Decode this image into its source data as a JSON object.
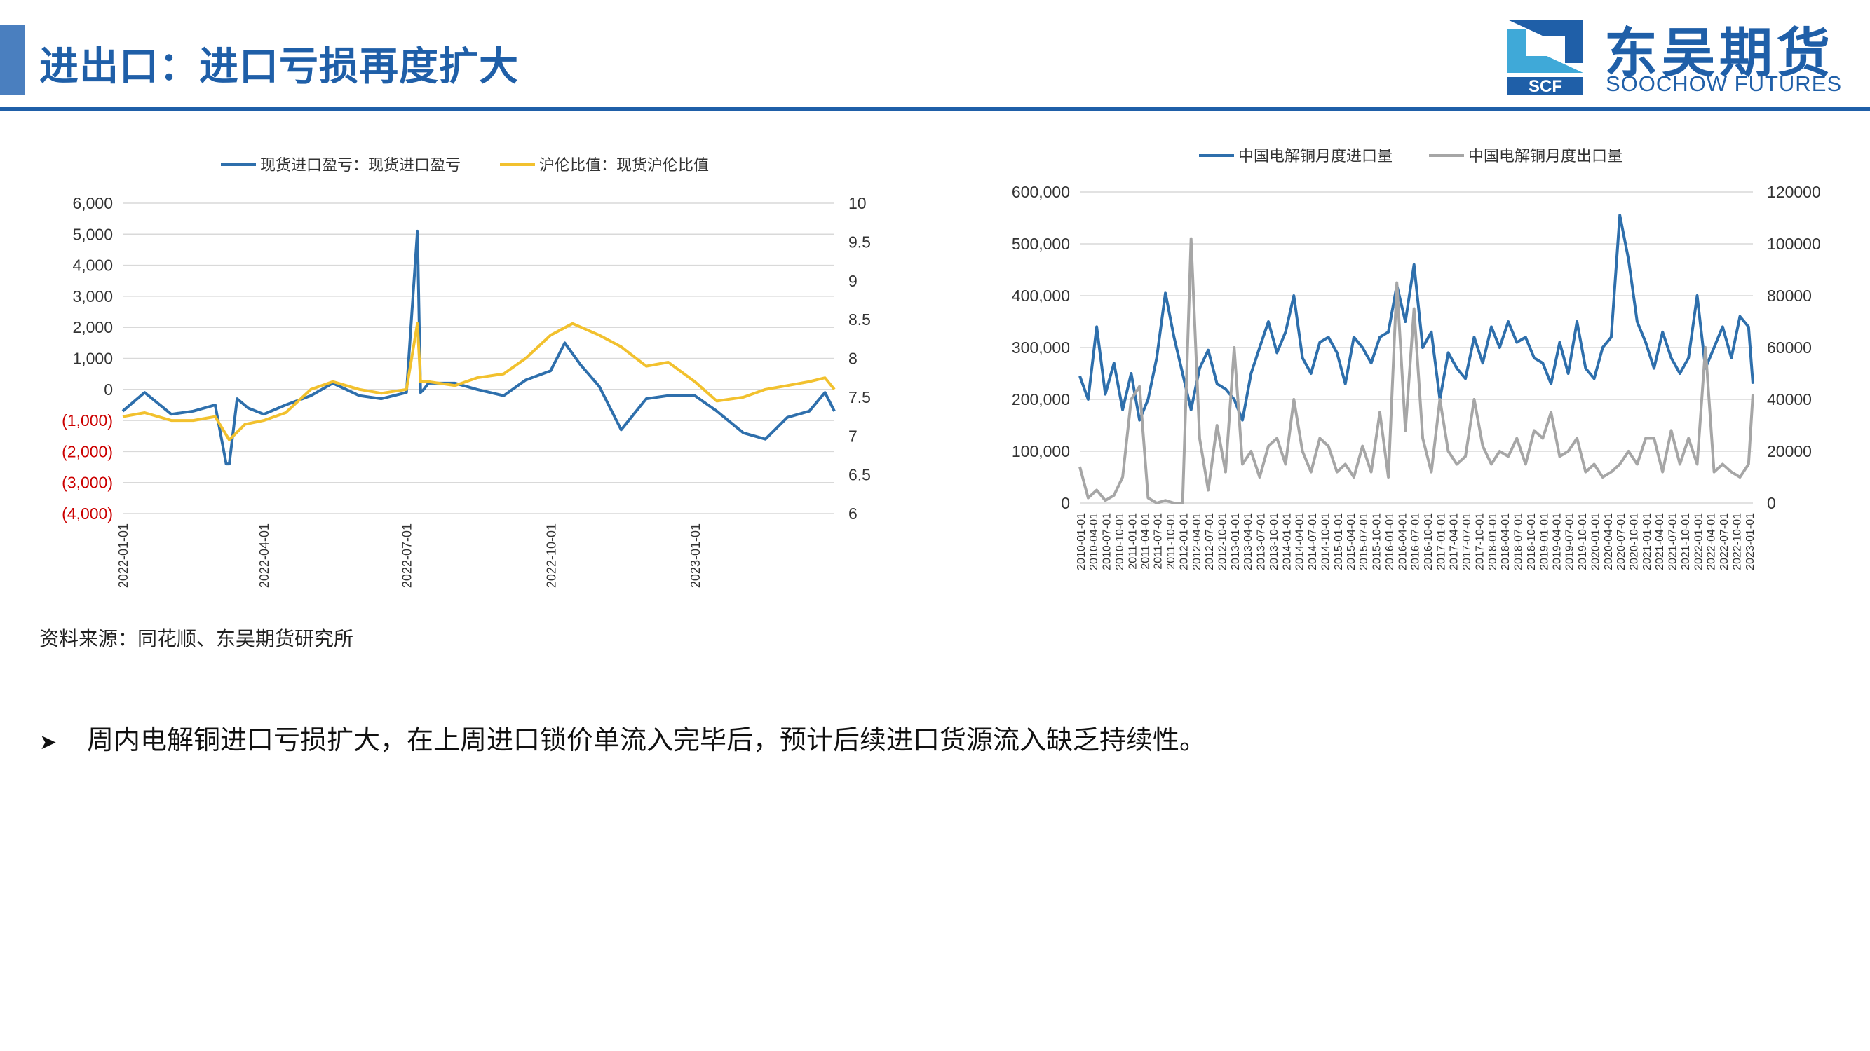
{
  "header": {
    "title": "进出口：进口亏损再度扩大"
  },
  "logo": {
    "cn": "东吴期货",
    "en": "SOOCHOW FUTURES",
    "mark": "SCF"
  },
  "colors": {
    "brand": "#1f5fa8",
    "blue": "#2e6fac",
    "yellow": "#f2c12e",
    "gray": "#a6a6a6",
    "negative": "#cc0000"
  },
  "source": "资料来源：同花顺、东吴期货研究所",
  "bullet": {
    "icon": "arrow-bullet-icon",
    "text": "周内电解铜进口亏损扩大，在上周进口锁价单流入完毕后，预计后续进口货源流入缺乏持续性。"
  },
  "chart_data": [
    {
      "type": "line",
      "legend": [
        "现货进口盈亏：现货进口盈亏",
        "沪伦比值：现货沪伦比值"
      ],
      "ytick_labels_left": [
        "6,000",
        "5,000",
        "4,000",
        "3,000",
        "2,000",
        "1,000",
        "0",
        "(1,000)",
        "(2,000)",
        "(3,000)",
        "(4,000)"
      ],
      "ytick_labels_right": [
        "10",
        "9.5",
        "9",
        "8.5",
        "8",
        "7.5",
        "7",
        "6.5",
        "6"
      ],
      "xtick_labels": [
        "2022-01-01",
        "2022-04-01",
        "2022-07-01",
        "2022-10-01",
        "2023-01-01"
      ],
      "ylim_left": [
        -4000,
        6000
      ],
      "ylim_right": [
        6,
        10
      ],
      "x_range": [
        "2022-01-01",
        "2023-03-31"
      ],
      "grid": true,
      "legend_position": "top",
      "series": [
        {
          "name": "现货进口盈亏：现货进口盈亏",
          "axis": "left",
          "x": [
            "2022-01-01",
            "2022-01-15",
            "2022-02-01",
            "2022-02-15",
            "2022-03-01",
            "2022-03-08",
            "2022-03-10",
            "2022-03-15",
            "2022-03-22",
            "2022-04-01",
            "2022-04-15",
            "2022-05-01",
            "2022-05-15",
            "2022-06-01",
            "2022-06-15",
            "2022-07-01",
            "2022-07-08",
            "2022-07-10",
            "2022-07-12",
            "2022-07-15",
            "2022-08-01",
            "2022-08-15",
            "2022-09-01",
            "2022-09-15",
            "2022-10-01",
            "2022-10-10",
            "2022-10-20",
            "2022-11-01",
            "2022-11-15",
            "2022-12-01",
            "2022-12-15",
            "2023-01-01",
            "2023-01-15",
            "2023-02-01",
            "2023-02-15",
            "2023-03-01",
            "2023-03-15",
            "2023-03-25",
            "2023-03-31"
          ],
          "values": [
            -700,
            -100,
            -800,
            -700,
            -500,
            -2400,
            -2400,
            -300,
            -600,
            -800,
            -500,
            -200,
            200,
            -200,
            -300,
            -100,
            5100,
            -100,
            0,
            200,
            200,
            0,
            -200,
            300,
            600,
            1500,
            800,
            100,
            -1300,
            -300,
            -200,
            -200,
            -700,
            -1400,
            -1600,
            -900,
            -700,
            -100,
            -700
          ]
        },
        {
          "name": "沪伦比值：现货沪伦比值",
          "axis": "right",
          "x": [
            "2022-01-01",
            "2022-01-15",
            "2022-02-01",
            "2022-02-15",
            "2022-03-01",
            "2022-03-10",
            "2022-03-20",
            "2022-04-01",
            "2022-04-15",
            "2022-05-01",
            "2022-05-15",
            "2022-06-01",
            "2022-06-15",
            "2022-07-01",
            "2022-07-08",
            "2022-07-10",
            "2022-07-15",
            "2022-08-01",
            "2022-08-15",
            "2022-09-01",
            "2022-09-15",
            "2022-10-01",
            "2022-10-15",
            "2022-11-01",
            "2022-11-15",
            "2022-12-01",
            "2022-12-15",
            "2023-01-01",
            "2023-01-15",
            "2023-02-01",
            "2023-02-15",
            "2023-03-01",
            "2023-03-15",
            "2023-03-25",
            "2023-03-31"
          ],
          "values": [
            7.25,
            7.3,
            7.2,
            7.2,
            7.25,
            6.95,
            7.15,
            7.2,
            7.3,
            7.6,
            7.7,
            7.6,
            7.55,
            7.6,
            8.45,
            7.7,
            7.7,
            7.65,
            7.75,
            7.8,
            8.0,
            8.3,
            8.45,
            8.3,
            8.15,
            7.9,
            7.95,
            7.7,
            7.45,
            7.5,
            7.6,
            7.65,
            7.7,
            7.75,
            7.6
          ]
        }
      ]
    },
    {
      "type": "line",
      "legend": [
        "中国电解铜月度进口量",
        "中国电解铜月度出口量"
      ],
      "ytick_labels_left": [
        "600,000",
        "500,000",
        "400,000",
        "300,000",
        "200,000",
        "100,000",
        "0"
      ],
      "ytick_labels_right": [
        "120000",
        "100000",
        "80000",
        "60000",
        "40000",
        "20000",
        "0"
      ],
      "xtick_labels": [
        "2010-01-01",
        "2010-04-01",
        "2010-07-01",
        "2010-10-01",
        "2011-01-01",
        "2011-04-01",
        "2011-07-01",
        "2011-10-01",
        "2012-01-01",
        "2012-04-01",
        "2012-07-01",
        "2012-10-01",
        "2013-01-01",
        "2013-04-01",
        "2013-07-01",
        "2013-10-01",
        "2014-01-01",
        "2014-04-01",
        "2014-07-01",
        "2014-10-01",
        "2015-01-01",
        "2015-04-01",
        "2015-07-01",
        "2015-10-01",
        "2016-01-01",
        "2016-04-01",
        "2016-07-01",
        "2016-10-01",
        "2017-01-01",
        "2017-04-01",
        "2017-07-01",
        "2017-10-01",
        "2018-01-01",
        "2018-04-01",
        "2018-07-01",
        "2018-10-01",
        "2019-01-01",
        "2019-04-01",
        "2019-07-01",
        "2019-10-01",
        "2020-01-01",
        "2020-04-01",
        "2020-07-01",
        "2020-10-01",
        "2021-01-01",
        "2021-04-01",
        "2021-07-01",
        "2021-10-01",
        "2022-01-01",
        "2022-04-01",
        "2022-07-01",
        "2022-10-01",
        "2023-01-01"
      ],
      "ylim_left": [
        0,
        600000
      ],
      "ylim_right": [
        0,
        120000
      ],
      "x_range": [
        "2010-01-01",
        "2023-02-01"
      ],
      "grid": true,
      "legend_position": "top",
      "series": [
        {
          "name": "中国电解铜月度进口量",
          "axis": "left",
          "x": [
            "2010-01",
            "2010-03",
            "2010-05",
            "2010-07",
            "2010-09",
            "2010-11",
            "2011-01",
            "2011-03",
            "2011-05",
            "2011-07",
            "2011-09",
            "2011-11",
            "2012-01",
            "2012-03",
            "2012-05",
            "2012-07",
            "2012-09",
            "2012-11",
            "2013-01",
            "2013-03",
            "2013-05",
            "2013-07",
            "2013-09",
            "2013-11",
            "2014-01",
            "2014-03",
            "2014-05",
            "2014-07",
            "2014-09",
            "2014-11",
            "2015-01",
            "2015-03",
            "2015-05",
            "2015-07",
            "2015-09",
            "2015-11",
            "2016-01",
            "2016-03",
            "2016-05",
            "2016-07",
            "2016-09",
            "2016-11",
            "2017-01",
            "2017-03",
            "2017-05",
            "2017-07",
            "2017-09",
            "2017-11",
            "2018-01",
            "2018-03",
            "2018-05",
            "2018-07",
            "2018-09",
            "2018-11",
            "2019-01",
            "2019-03",
            "2019-05",
            "2019-07",
            "2019-09",
            "2019-11",
            "2020-01",
            "2020-03",
            "2020-05",
            "2020-07",
            "2020-09",
            "2020-11",
            "2021-01",
            "2021-03",
            "2021-05",
            "2021-07",
            "2021-09",
            "2021-11",
            "2022-01",
            "2022-03",
            "2022-05",
            "2022-07",
            "2022-09",
            "2022-11",
            "2023-01",
            "2023-02"
          ],
          "values": [
            245000,
            200000,
            340000,
            210000,
            270000,
            180000,
            250000,
            160000,
            200000,
            280000,
            405000,
            320000,
            250000,
            180000,
            260000,
            295000,
            230000,
            220000,
            200000,
            160000,
            250000,
            300000,
            350000,
            290000,
            330000,
            400000,
            280000,
            250000,
            310000,
            320000,
            290000,
            230000,
            320000,
            300000,
            270000,
            320000,
            330000,
            420000,
            350000,
            460000,
            300000,
            330000,
            200000,
            290000,
            260000,
            240000,
            320000,
            270000,
            340000,
            300000,
            350000,
            310000,
            320000,
            280000,
            270000,
            230000,
            310000,
            250000,
            350000,
            260000,
            240000,
            300000,
            320000,
            555000,
            470000,
            350000,
            310000,
            260000,
            330000,
            280000,
            250000,
            280000,
            400000,
            260000,
            300000,
            340000,
            280000,
            360000,
            340000,
            230000
          ]
        },
        {
          "name": "中国电解铜月度出口量",
          "axis": "right",
          "x": [
            "2010-01",
            "2010-03",
            "2010-05",
            "2010-07",
            "2010-09",
            "2010-11",
            "2011-01",
            "2011-03",
            "2011-05",
            "2011-07",
            "2011-09",
            "2011-11",
            "2012-01",
            "2012-03",
            "2012-05",
            "2012-07",
            "2012-09",
            "2012-11",
            "2013-01",
            "2013-03",
            "2013-05",
            "2013-07",
            "2013-09",
            "2013-11",
            "2014-01",
            "2014-03",
            "2014-05",
            "2014-07",
            "2014-09",
            "2014-11",
            "2015-01",
            "2015-03",
            "2015-05",
            "2015-07",
            "2015-09",
            "2015-11",
            "2016-01",
            "2016-03",
            "2016-05",
            "2016-07",
            "2016-09",
            "2016-11",
            "2017-01",
            "2017-03",
            "2017-05",
            "2017-07",
            "2017-09",
            "2017-11",
            "2018-01",
            "2018-03",
            "2018-05",
            "2018-07",
            "2018-09",
            "2018-11",
            "2019-01",
            "2019-03",
            "2019-05",
            "2019-07",
            "2019-09",
            "2019-11",
            "2020-01",
            "2020-03",
            "2020-05",
            "2020-07",
            "2020-09",
            "2020-11",
            "2021-01",
            "2021-03",
            "2021-05",
            "2021-07",
            "2021-09",
            "2021-11",
            "2022-01",
            "2022-03",
            "2022-05",
            "2022-07",
            "2022-09",
            "2022-11",
            "2023-01",
            "2023-02"
          ],
          "values": [
            14000,
            2000,
            5000,
            1000,
            3000,
            10000,
            40000,
            45000,
            2000,
            0,
            1000,
            0,
            0,
            102000,
            25000,
            5000,
            30000,
            12000,
            60000,
            15000,
            20000,
            10000,
            22000,
            25000,
            15000,
            40000,
            20000,
            12000,
            25000,
            22000,
            12000,
            15000,
            10000,
            22000,
            12000,
            35000,
            10000,
            85000,
            28000,
            75000,
            25000,
            12000,
            40000,
            20000,
            15000,
            18000,
            40000,
            22000,
            15000,
            20000,
            18000,
            25000,
            15000,
            28000,
            25000,
            35000,
            18000,
            20000,
            25000,
            12000,
            15000,
            10000,
            12000,
            15000,
            20000,
            15000,
            25000,
            25000,
            12000,
            28000,
            15000,
            25000,
            15000,
            60000,
            12000,
            15000,
            12000,
            10000,
            15000,
            42000
          ]
        }
      ]
    }
  ]
}
